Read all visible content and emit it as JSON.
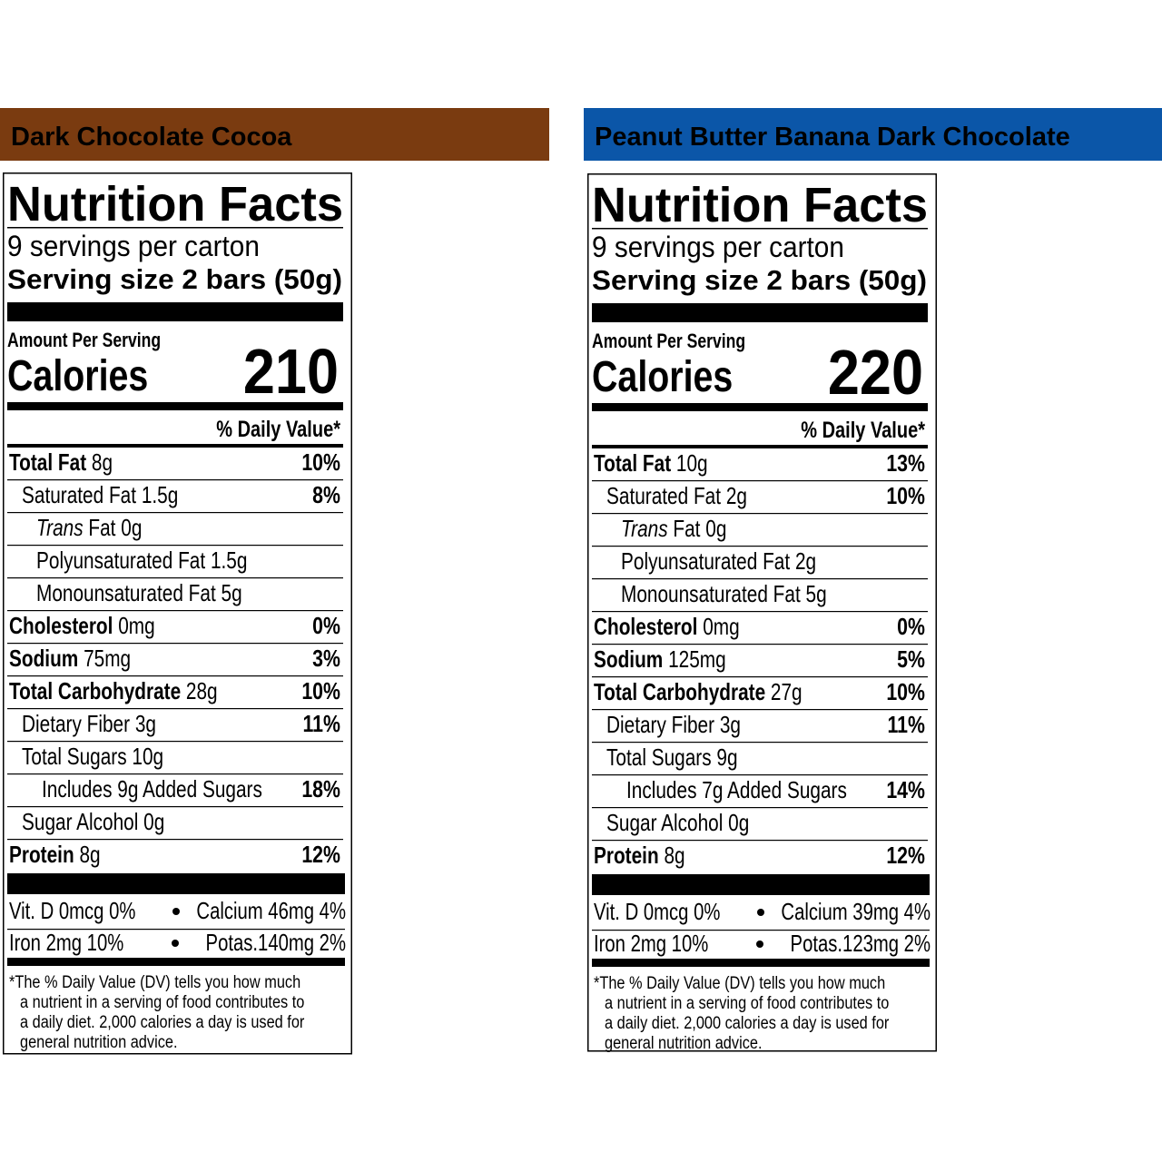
{
  "panels": [
    {
      "header": "Dark Chocolate Cocoa",
      "label": {
        "title": "Nutrition Facts",
        "servings": "9 servings per carton",
        "serving_size": "Serving size 2 bars (50g)",
        "amount_per_serving": "Amount Per Serving",
        "calories_label": "Calories",
        "calories": "210",
        "dv_header": "% Daily Value*",
        "nutrients": [
          {
            "name": "Total Fat",
            "amount": "8g",
            "dv": "10%",
            "sub": [
              {
                "name": "Saturated Fat",
                "amount": "1.5g",
                "dv": "8%",
                "sub": [
                  {
                    "name_italic": "Trans",
                    "name": "Fat",
                    "amount": "0g"
                  },
                  {
                    "name": "Polyunsaturated Fat",
                    "amount": "1.5g"
                  },
                  {
                    "name": "Monounsaturated Fat",
                    "amount": "5g"
                  }
                ]
              }
            ]
          },
          {
            "name": "Cholesterol",
            "amount": "0mg",
            "dv": "0%"
          },
          {
            "name": "Sodium",
            "amount": "75mg",
            "dv": "3%"
          },
          {
            "name": "Total Carbohydrate",
            "amount": "28g",
            "dv": "10%",
            "sub": [
              {
                "name": "Dietary Fiber",
                "amount": "3g",
                "dv": "11%"
              },
              {
                "name": "Total Sugars",
                "amount": "10g",
                "sub": [
                  {
                    "name": "Includes 9g Added Sugars",
                    "dv": "18%"
                  }
                ]
              },
              {
                "name": "Sugar Alcohol",
                "amount": "0g"
              }
            ]
          },
          {
            "name": "Protein",
            "amount": "8g",
            "dv": "12%"
          }
        ],
        "vitamins": [
          [
            "Vit. D 0mcg 0%",
            "Calcium 46mg 4%"
          ],
          [
            "Iron 2mg 10%",
            "Potas.140mg 2%"
          ]
        ],
        "footnote": [
          "*The % Daily Value (DV) tells you how much",
          "a nutrient in a serving of food contributes to",
          "a daily diet. 2,000 calories a day is used for",
          "general nutrition advice."
        ]
      }
    },
    {
      "header": "Peanut Butter Banana Dark Chocolate",
      "label": {
        "title": "Nutrition Facts",
        "servings": "9 servings per carton",
        "serving_size": "Serving size 2 bars (50g)",
        "amount_per_serving": "Amount Per Serving",
        "calories_label": "Calories",
        "calories": "220",
        "dv_header": "% Daily Value*",
        "nutrients": [
          {
            "name": "Total Fat",
            "amount": "10g",
            "dv": "13%",
            "sub": [
              {
                "name": "Saturated Fat",
                "amount": "2g",
                "dv": "10%",
                "sub": [
                  {
                    "name_italic": "Trans",
                    "name": "Fat",
                    "amount": "0g"
                  },
                  {
                    "name": "Polyunsaturated Fat",
                    "amount": "2g"
                  },
                  {
                    "name": "Monounsaturated Fat",
                    "amount": "5g"
                  }
                ]
              }
            ]
          },
          {
            "name": "Cholesterol",
            "amount": "0mg",
            "dv": "0%"
          },
          {
            "name": "Sodium",
            "amount": "125mg",
            "dv": "5%"
          },
          {
            "name": "Total Carbohydrate",
            "amount": "27g",
            "dv": "10%",
            "sub": [
              {
                "name": "Dietary Fiber",
                "amount": "3g",
                "dv": "11%"
              },
              {
                "name": "Total Sugars",
                "amount": "9g",
                "sub": [
                  {
                    "name": "Includes 7g Added Sugars",
                    "dv": "14%"
                  }
                ]
              },
              {
                "name": "Sugar Alcohol",
                "amount": "0g"
              }
            ]
          },
          {
            "name": "Protein",
            "amount": "8g",
            "dv": "12%"
          }
        ],
        "vitamins": [
          [
            "Vit. D 0mcg 0%",
            "Calcium 39mg 4%"
          ],
          [
            "Iron 2mg 10%",
            "Potas.123mg 2%"
          ]
        ],
        "footnote": [
          "*The % Daily Value (DV) tells you how much",
          "a nutrient in a serving of food contributes to",
          "a daily diet. 2,000 calories a day is used for",
          "general nutrition advice."
        ]
      }
    }
  ]
}
